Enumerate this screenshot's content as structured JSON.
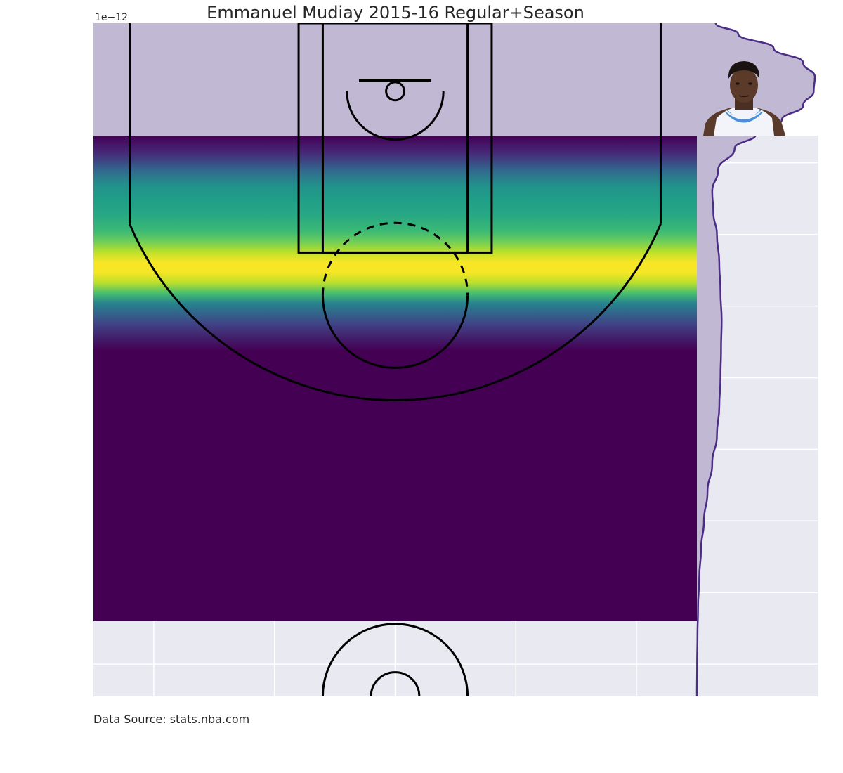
{
  "chart_data": {
    "type": "heatmap",
    "title": "Emmanuel Mudiay 2015-16 Regular+Season",
    "offset_label": "1e−12",
    "source": "Data Source: stats.nba.com",
    "xlim": [
      -250,
      250
    ],
    "ylim": [
      422.5,
      -47.5
    ],
    "x_gridlines": [
      -200,
      -100,
      0,
      100,
      200
    ],
    "y_gridlines": [
      -50,
      0,
      50,
      100,
      150,
      200,
      250,
      300,
      350,
      400
    ],
    "grid": true,
    "colormap": "viridis",
    "heat_profile": {
      "y": [
        -47.5,
        -30,
        -15,
        0,
        15,
        30,
        45,
        55,
        65,
        75,
        85,
        95,
        105,
        115,
        135,
        160,
        422.5
      ],
      "intensity": [
        0.0,
        0.12,
        0.32,
        0.5,
        0.56,
        0.6,
        0.68,
        0.78,
        0.9,
        0.99,
        0.99,
        0.9,
        0.7,
        0.45,
        0.2,
        0.0,
        0.0
      ]
    },
    "marginal_kde": {
      "orientation": "vertical",
      "color": "#4b2c86",
      "fill": "#c1b8d3",
      "y": [
        -47.5,
        -40,
        -30,
        -20,
        -10,
        0,
        10,
        20,
        30,
        40,
        55,
        70,
        85,
        100,
        120,
        140,
        160,
        180,
        200,
        220,
        240,
        260,
        280,
        300,
        320,
        340,
        360,
        380,
        400,
        422.5
      ],
      "density": [
        0.16,
        0.35,
        0.65,
        0.9,
        1.0,
        0.99,
        0.9,
        0.72,
        0.5,
        0.32,
        0.18,
        0.13,
        0.14,
        0.17,
        0.19,
        0.2,
        0.21,
        0.205,
        0.2,
        0.19,
        0.17,
        0.13,
        0.09,
        0.06,
        0.035,
        0.02,
        0.01,
        0.005,
        0.002,
        0.0
      ]
    },
    "court_color": "#000000",
    "panel_bg": "#e9e9f1",
    "top_strip_color": "#c1b9d4"
  }
}
